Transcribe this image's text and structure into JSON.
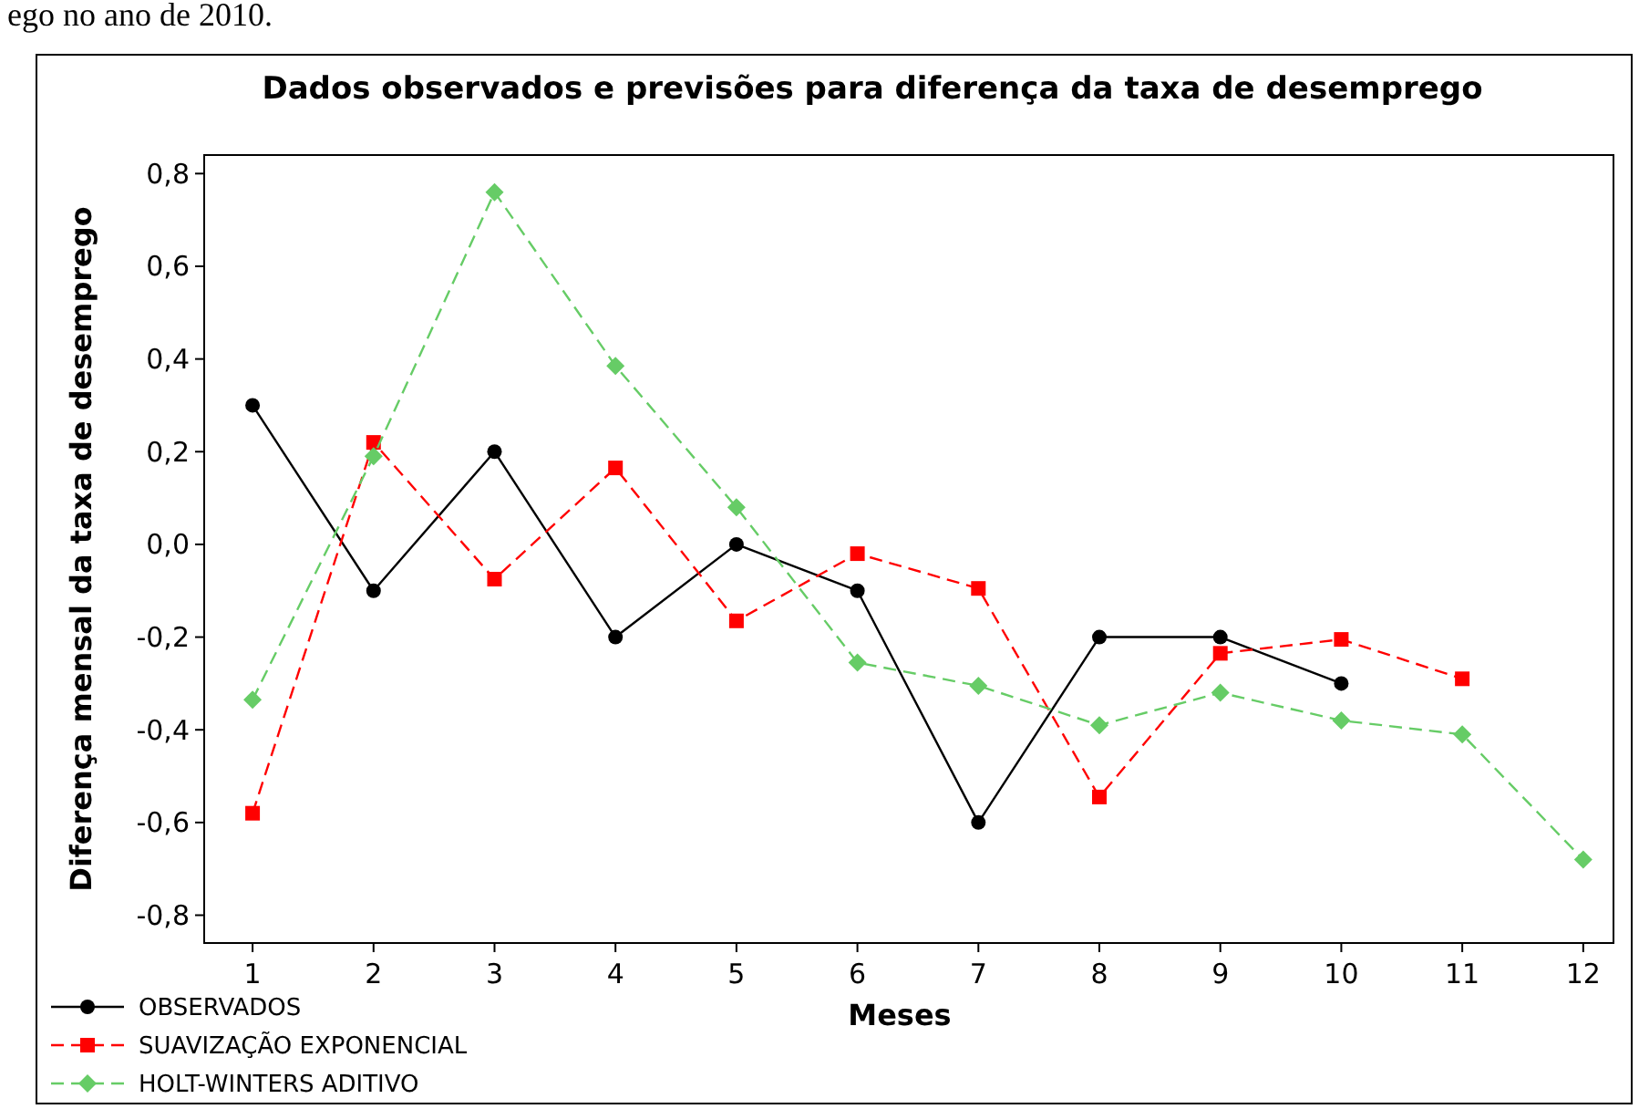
{
  "chart_data": {
    "type": "line",
    "title": "Dados observados e previsões para diferença da taxa de desemprego",
    "xlabel": "Meses",
    "ylabel": "Diferença mensal da taxa de desemprego",
    "annotations": [
      "ego no ano de 2010."
    ],
    "x": [
      1,
      2,
      3,
      4,
      5,
      6,
      7,
      8,
      9,
      10,
      11,
      12
    ],
    "xlim": [
      0.6,
      12.25
    ],
    "xticks": [
      1,
      2,
      3,
      4,
      5,
      6,
      7,
      8,
      9,
      10,
      11,
      12
    ],
    "ylim": [
      -0.86,
      0.84
    ],
    "yticks": [
      {
        "value": -0.8,
        "label": "-0,8"
      },
      {
        "value": -0.6,
        "label": "-0,6"
      },
      {
        "value": -0.4,
        "label": "-0,4"
      },
      {
        "value": -0.2,
        "label": "-0,2"
      },
      {
        "value": 0,
        "label": "0,0"
      },
      {
        "value": 0.2,
        "label": "0,2"
      },
      {
        "value": 0.4,
        "label": "0,4"
      },
      {
        "value": 0.6,
        "label": "0,6"
      },
      {
        "value": 0.8,
        "label": "0,8"
      }
    ],
    "grid": false,
    "legend": "bottom left",
    "series": [
      {
        "name": "OBSERVADOS",
        "color": "#000000",
        "marker": "circle",
        "line_style": "solid",
        "values": [
          0.3,
          -0.1,
          0.2,
          -0.2,
          0.0,
          -0.1,
          -0.6,
          -0.2,
          -0.2,
          -0.3,
          null,
          null
        ]
      },
      {
        "name": "SUAVIZAÇÃO EXPONENCIAL",
        "color": "#ff0000",
        "marker": "square",
        "line_style": "dashed",
        "values": [
          -0.58,
          0.22,
          -0.075,
          0.165,
          -0.165,
          -0.02,
          -0.095,
          -0.545,
          -0.235,
          -0.205,
          -0.29,
          null
        ]
      },
      {
        "name": "HOLT-WINTERS ADITIVO",
        "color": "#66cc66",
        "marker": "diamond",
        "line_style": "dashed",
        "values": [
          -0.335,
          0.19,
          0.76,
          0.385,
          0.08,
          -0.255,
          -0.305,
          -0.39,
          -0.32,
          -0.38,
          -0.41,
          -0.68
        ]
      }
    ]
  }
}
